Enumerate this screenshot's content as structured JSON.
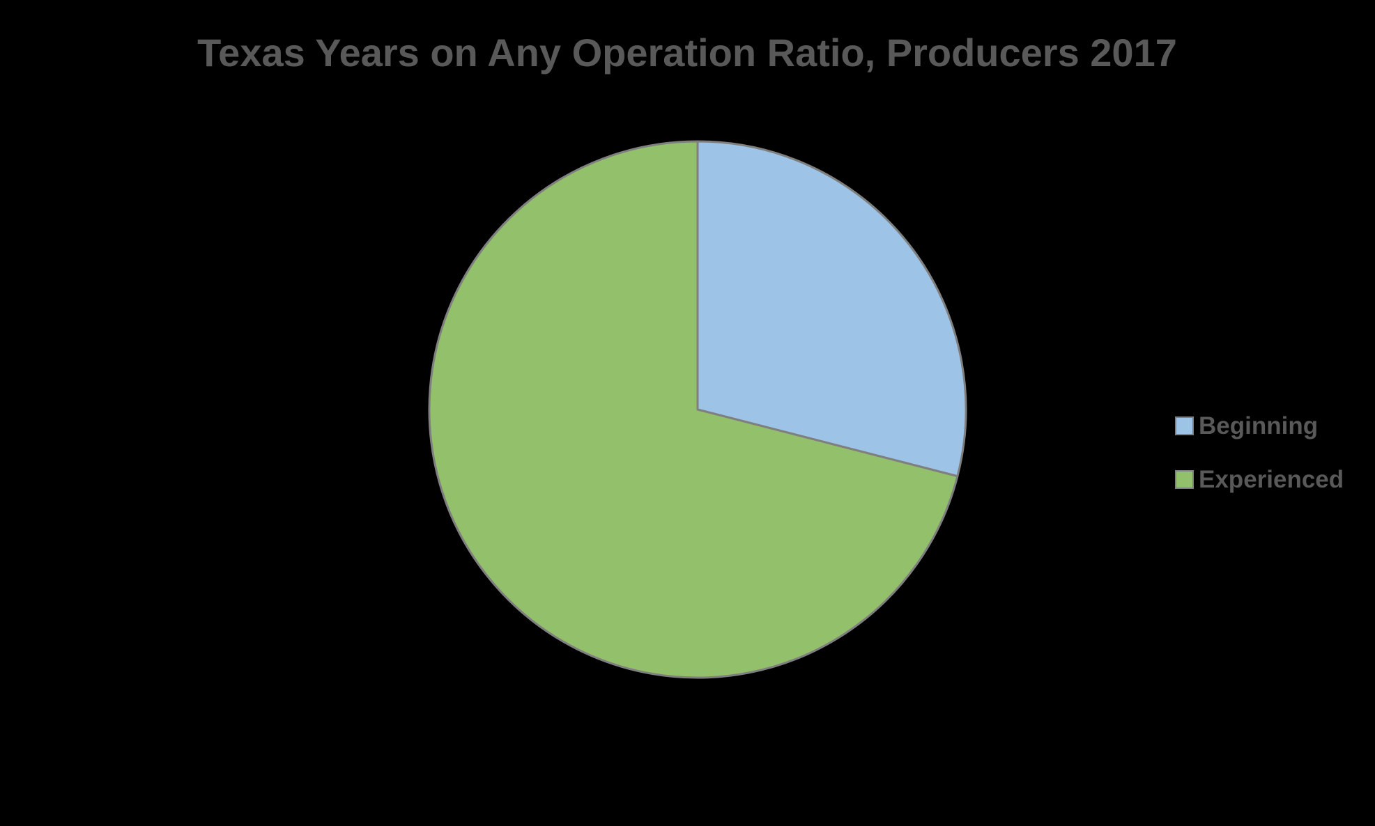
{
  "chart_data": {
    "type": "pie",
    "title": "Texas Years on Any Operation Ratio, Producers 2017",
    "categories": [
      "Beginning",
      "Experienced"
    ],
    "values": [
      29,
      71
    ],
    "colors": [
      "#9DC3E6",
      "#93C06A"
    ],
    "stroke_color": "#7F7F7F",
    "legend_position": "right",
    "background": "#000000"
  }
}
